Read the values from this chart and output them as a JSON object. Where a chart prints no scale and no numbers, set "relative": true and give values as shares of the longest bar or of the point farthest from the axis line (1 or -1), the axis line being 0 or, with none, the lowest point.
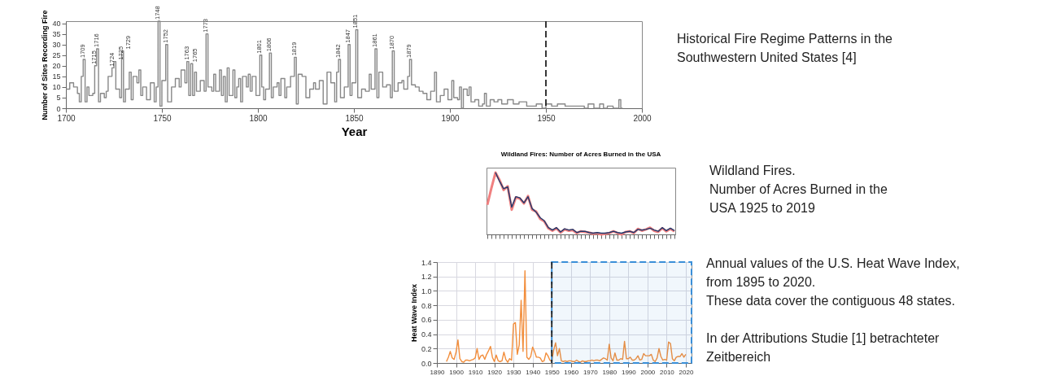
{
  "chart_data": [
    {
      "type": "step",
      "xlabel": "Year",
      "ylabel": "Number of Sites Recording Fire",
      "xlim": [
        1700,
        2000
      ],
      "xticks": [
        1700,
        1750,
        1800,
        1850,
        1900,
        1950,
        2000
      ],
      "ylim": [
        0,
        41
      ],
      "yticks": [
        0,
        5,
        10,
        15,
        20,
        25,
        30,
        35,
        40
      ],
      "grid": false,
      "x": [
        1700,
        1702,
        1704,
        1706,
        1707,
        1708,
        1709,
        1710,
        1711,
        1712,
        1714,
        1715,
        1716,
        1717,
        1718,
        1720,
        1721,
        1722,
        1724,
        1725,
        1726,
        1728,
        1729,
        1730,
        1731,
        1733,
        1734,
        1735,
        1737,
        1738,
        1739,
        1740,
        1742,
        1744,
        1746,
        1747,
        1748,
        1749,
        1750,
        1752,
        1753,
        1755,
        1757,
        1759,
        1760,
        1762,
        1763,
        1764,
        1765,
        1766,
        1767,
        1768,
        1770,
        1772,
        1773,
        1774,
        1776,
        1777,
        1778,
        1780,
        1781,
        1782,
        1783,
        1784,
        1785,
        1787,
        1788,
        1789,
        1790,
        1791,
        1792,
        1794,
        1795,
        1796,
        1797,
        1799,
        1801,
        1802,
        1803,
        1804,
        1806,
        1807,
        1808,
        1810,
        1811,
        1812,
        1814,
        1815,
        1817,
        1819,
        1820,
        1821,
        1823,
        1825,
        1827,
        1829,
        1830,
        1832,
        1834,
        1836,
        1838,
        1840,
        1841,
        1842,
        1843,
        1845,
        1847,
        1848,
        1849,
        1851,
        1852,
        1854,
        1856,
        1858,
        1859,
        1861,
        1862,
        1863,
        1865,
        1867,
        1869,
        1870,
        1871,
        1873,
        1875,
        1876,
        1878,
        1879,
        1880,
        1882,
        1884,
        1886,
        1888,
        1890,
        1892,
        1893,
        1895,
        1897,
        1899,
        1901,
        1902,
        1904,
        1905,
        1906,
        1907,
        1909,
        1910,
        1911,
        1913,
        1915,
        1917,
        1918,
        1919,
        1921,
        1923,
        1925,
        1927,
        1930,
        1933,
        1936,
        1940,
        1945,
        1948,
        1950,
        1953,
        1956,
        1960,
        1965,
        1970,
        1972,
        1975,
        1978,
        1980,
        1982,
        1985,
        1988,
        1989,
        1990
      ],
      "series": [
        {
          "color": "#888888",
          "values": [
            9,
            12,
            10,
            7,
            3,
            15,
            23,
            3,
            10,
            6,
            7,
            20,
            28,
            3,
            7,
            5,
            8,
            15,
            19,
            22,
            9,
            5,
            27,
            3,
            9,
            17,
            4,
            15,
            12,
            18,
            6,
            10,
            4,
            12,
            3,
            10,
            41,
            1,
            13,
            30,
            3,
            10,
            14,
            10,
            18,
            12,
            22,
            6,
            21,
            6,
            17,
            8,
            13,
            8,
            35,
            10,
            8,
            16,
            8,
            18,
            6,
            15,
            3,
            19,
            6,
            18,
            5,
            10,
            14,
            3,
            15,
            10,
            16,
            8,
            15,
            6,
            25,
            10,
            4,
            9,
            26,
            5,
            10,
            12,
            6,
            14,
            5,
            10,
            15,
            24,
            2,
            16,
            15,
            5,
            9,
            12,
            9,
            13,
            2,
            17,
            12,
            3,
            17,
            23,
            5,
            10,
            30,
            6,
            12,
            37,
            5,
            9,
            8,
            16,
            9,
            28,
            5,
            17,
            10,
            11,
            5,
            27,
            8,
            12,
            13,
            9,
            15,
            23,
            11,
            10,
            8,
            7,
            4,
            8,
            17,
            3,
            6,
            9,
            4,
            13,
            5,
            4,
            10,
            0,
            9,
            6,
            10,
            3,
            4,
            1,
            2,
            7,
            1,
            4,
            3,
            4,
            2,
            4,
            2,
            3,
            1,
            2,
            0,
            2,
            1,
            2,
            1,
            1,
            0,
            2,
            0,
            2,
            0,
            1,
            0,
            4,
            0,
            0
          ]
        }
      ],
      "annotations": [
        "Historical Fire Regime Patterns in the\nSouthwestern United States [4]",
        {
          "text": "1709",
          "x": 1709,
          "y": 23
        },
        {
          "text": "1715",
          "x": 1715,
          "y": 20
        },
        {
          "text": "1716",
          "x": 1716,
          "y": 28
        },
        {
          "text": "1724",
          "x": 1724,
          "y": 19
        },
        {
          "text": "1725",
          "x": 1725,
          "y": 22
        },
        {
          "text": "1729",
          "x": 1729,
          "y": 27
        },
        {
          "text": "1748",
          "x": 1748,
          "y": 41
        },
        {
          "text": "1752",
          "x": 1752,
          "y": 30
        },
        {
          "text": "1763",
          "x": 1763,
          "y": 22
        },
        {
          "text": "1765",
          "x": 1765,
          "y": 21
        },
        {
          "text": "1773",
          "x": 1773,
          "y": 35
        },
        {
          "text": "1801",
          "x": 1801,
          "y": 25
        },
        {
          "text": "1806",
          "x": 1806,
          "y": 26
        },
        {
          "text": "1819",
          "x": 1819,
          "y": 24
        },
        {
          "text": "1842",
          "x": 1842,
          "y": 23
        },
        {
          "text": "1847",
          "x": 1847,
          "y": 30
        },
        {
          "text": "1851",
          "x": 1851,
          "y": 37
        },
        {
          "text": "1861",
          "x": 1861,
          "y": 28
        },
        {
          "text": "1870",
          "x": 1870,
          "y": 27
        },
        {
          "text": "1879",
          "x": 1879,
          "y": 23
        }
      ],
      "ref_lines": [
        {
          "axis": "x",
          "value": 1950,
          "color": "#222222",
          "line_style": "dashed"
        }
      ]
    },
    {
      "type": "line",
      "title": "Wildland Fires: Number of Acres Burned in the USA",
      "annotations": [
        "Wildland Fires.\nNumber of Acres Burned in the\nUSA 1925 to 2019"
      ],
      "relative": true,
      "categories": [
        null,
        null,
        null,
        null,
        null,
        null,
        null,
        null,
        null,
        null,
        null,
        null,
        null,
        null,
        null,
        null,
        null,
        null,
        null,
        null,
        null,
        null,
        null,
        null,
        null,
        null,
        null,
        null,
        null,
        null,
        null,
        null,
        null,
        null,
        null,
        null,
        null,
        null,
        null,
        null,
        null,
        null,
        null,
        null,
        null,
        null,
        null
      ],
      "series": [
        {
          "color": "#f08080",
          "values": [
            0.48,
            0.75,
            1.0,
            0.88,
            0.72,
            0.78,
            0.4,
            0.6,
            0.58,
            0.5,
            0.62,
            0.4,
            0.37,
            0.25,
            0.21,
            0.1,
            0.06,
            0.1,
            0.03,
            0.08,
            0.06,
            0.07,
            0.02,
            0.05,
            0.04,
            0.03,
            0.01,
            0.02,
            0.0,
            0.01,
            0.02,
            0.05,
            0.02,
            0.0,
            0.04,
            0.05,
            0.02,
            0.09,
            0.06,
            0.08,
            0.11,
            0.06,
            0.04,
            0.1,
            0.05,
            0.09,
            0.05
          ]
        },
        {
          "color": "#1f3a6e",
          "values": [
            null,
            null,
            1.0,
            0.86,
            0.74,
            0.77,
            0.44,
            0.61,
            0.59,
            0.51,
            0.61,
            0.42,
            0.36,
            0.27,
            0.22,
            0.11,
            0.07,
            0.11,
            0.04,
            0.09,
            0.07,
            0.08,
            0.03,
            0.05,
            0.05,
            0.03,
            0.02,
            0.03,
            0.02,
            0.02,
            0.03,
            0.05,
            0.03,
            0.02,
            0.04,
            0.05,
            0.03,
            0.08,
            0.07,
            0.08,
            0.1,
            0.07,
            0.05,
            0.11,
            0.06,
            0.1,
            0.06
          ]
        }
      ]
    },
    {
      "type": "line",
      "annotations": [
        "Annual values of the U.S. Heat Wave Index,\nfrom 1895 to 2020.\nThese data cover the contiguous 48 states."
      ],
      "ylabel": "Heat Wave Index",
      "xlim": [
        1890,
        2023
      ],
      "xticks": [
        1890,
        1900,
        1910,
        1920,
        1930,
        1940,
        1950,
        1960,
        1970,
        1980,
        1990,
        2000,
        2010,
        2020
      ],
      "ylim": [
        0,
        1.4
      ],
      "yticks": [
        {
          "value": 0,
          "label": "0.0"
        },
        0.2,
        0.4,
        0.6,
        0.8,
        {
          "value": 1,
          "label": "1.0"
        },
        1.2,
        1.4
      ],
      "grid": true,
      "x": [
        1895,
        1896,
        1897,
        1898,
        1899,
        1900,
        1901,
        1902,
        1903,
        1904,
        1905,
        1906,
        1907,
        1908,
        1909,
        1910,
        1911,
        1912,
        1913,
        1914,
        1915,
        1916,
        1917,
        1918,
        1919,
        1920,
        1921,
        1922,
        1923,
        1924,
        1925,
        1926,
        1927,
        1928,
        1929,
        1930,
        1931,
        1932,
        1933,
        1934,
        1935,
        1936,
        1937,
        1938,
        1939,
        1940,
        1941,
        1942,
        1943,
        1944,
        1945,
        1946,
        1947,
        1948,
        1949,
        1950,
        1951,
        1952,
        1953,
        1954,
        1955,
        1956,
        1957,
        1958,
        1959,
        1960,
        1961,
        1962,
        1963,
        1964,
        1965,
        1966,
        1967,
        1968,
        1969,
        1970,
        1971,
        1972,
        1973,
        1974,
        1975,
        1976,
        1977,
        1978,
        1979,
        1980,
        1981,
        1982,
        1983,
        1984,
        1985,
        1986,
        1987,
        1988,
        1989,
        1990,
        1991,
        1992,
        1993,
        1994,
        1995,
        1996,
        1997,
        1998,
        1999,
        2000,
        2001,
        2002,
        2003,
        2004,
        2005,
        2006,
        2007,
        2008,
        2009,
        2010,
        2011,
        2012,
        2013,
        2014,
        2015,
        2016,
        2017,
        2018,
        2019,
        2020
      ],
      "series": [
        {
          "color": "#f28e3c",
          "values": [
            0.02,
            0.08,
            0.16,
            0.07,
            0.05,
            0.15,
            0.32,
            0.06,
            0.02,
            0.01,
            0.04,
            0.04,
            0.03,
            0.04,
            0.05,
            0.07,
            0.2,
            0.05,
            0.1,
            0.11,
            0.05,
            0.12,
            0.17,
            0.23,
            0.08,
            0.02,
            0.11,
            0.03,
            0.02,
            0.03,
            0.15,
            0.05,
            0.01,
            0.06,
            0.04,
            0.54,
            0.56,
            0.12,
            0.25,
            0.87,
            0.16,
            1.28,
            0.08,
            0.05,
            0.09,
            0.22,
            0.16,
            0.08,
            0.08,
            0.07,
            0.02,
            0.03,
            0.14,
            0.1,
            0.04,
            0.02,
            0.18,
            0.28,
            0.1,
            0.2,
            0.03,
            0.02,
            0.03,
            0.02,
            0.03,
            0.03,
            0.02,
            0.02,
            0.04,
            0.02,
            0.01,
            0.03,
            0.02,
            0.02,
            0.03,
            0.03,
            0.04,
            0.03,
            0.04,
            0.04,
            0.03,
            0.05,
            0.07,
            0.06,
            0.04,
            0.26,
            0.07,
            0.03,
            0.14,
            0.04,
            0.04,
            0.06,
            0.05,
            0.3,
            0.06,
            0.06,
            0.08,
            0.04,
            0.04,
            0.06,
            0.1,
            0.04,
            0.05,
            0.13,
            0.1,
            0.1,
            0.1,
            0.12,
            0.04,
            0.02,
            0.07,
            0.2,
            0.09,
            0.04,
            0.05,
            0.04,
            0.29,
            0.27,
            0.06,
            0.03,
            0.08,
            0.09,
            0.09,
            0.13,
            0.08,
            0.12
          ]
        }
      ],
      "ref_lines": [
        {
          "axis": "x",
          "value": 1950,
          "color": "#222222",
          "line_style": "dashed"
        }
      ],
      "bands": [
        {
          "axis": "x",
          "from": 1950,
          "to": 2023,
          "label": "In der Attributions Studie [1] betrachteter Zeitbereich",
          "color": "#3a8fd8"
        }
      ]
    }
  ]
}
